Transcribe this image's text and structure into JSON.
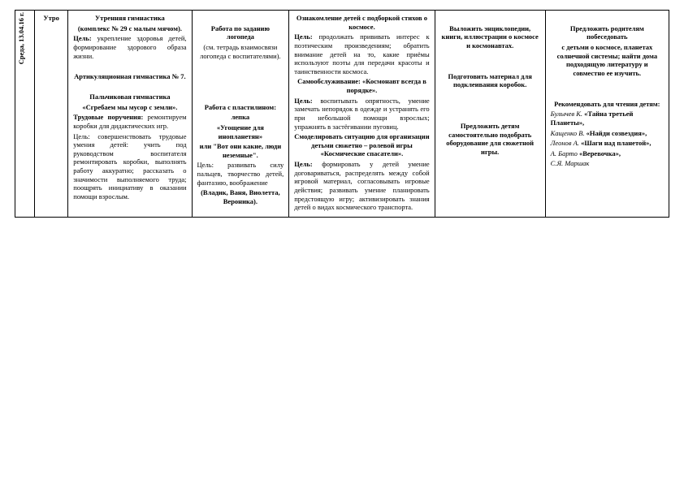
{
  "date": "Среда, 13.04.16 г.",
  "period": "Утро",
  "col2": {
    "p1_title": "Утренняя гимнастика",
    "p1_sub": "(комплекс № 29 с малым мячом).",
    "p1_goal_lbl": "Цель:",
    "p1_goal": " укрепление здоровья детей, формирование здорового образа жизни.",
    "p2_title": "Артикуляционная гимнастика № 7.",
    "p3_title": "Пальчиковая гимнастика",
    "p3_name": "«Сгребаем мы мусор с земли».",
    "p4_title": "Трудовые поручения:",
    "p4_text": " ремонтируем коробки для дидактических игр.",
    "p4_goal": "Цель: совершенствовать трудовые умения детей: учить под руководством воспитателя ремонтировать коробки, выполнять работу аккуратно; рассказать о значимости выполняемого труда; поощрять инициативу в оказании помощи взрослым."
  },
  "col3": {
    "p1_title": "Работа по заданию логопеда",
    "p1_text": "(см. тетрадь взаимосвязи логопеда с воспитателями).",
    "p2_title": "Работа с пластилином:",
    "p2_sub": "лепка",
    "p2_name": "«Угощение для инопланетян»",
    "p2_or": "или \"Вот они какие, люди неземные\".",
    "p2_goal": "Цель: развивать силу пальцев, творчество детей, фантазию, воображение",
    "p2_names": "(Владик, Ваня, Виолетта, Вероника)."
  },
  "col4": {
    "p1_title": "Ознакомление детей с подборкой стихов о космосе.",
    "p1_goal_lbl": "Цель:",
    "p1_goal": " продолжать прививать интерес к поэтическим произведениям; обратить внимание детей на то, какие приёмы используют поэты для передачи красоты и таинственности космоса.",
    "p2_title": "Самообслуживание: «Космонавт всегда в порядке».",
    "p2_goal_lbl": "Цель:",
    "p2_goal": " воспитывать опрятность, умение замечать непорядок в одежде и устранять его при небольшой помощи взрослых; упражнять в застёгивании пуговиц.",
    "p3_title": "Смоделировать ситуацию для организации детьми сюжетно – ролевой игры «Космические спасатели».",
    "p3_goal_lbl": "Цель:",
    "p3_goal": " формировать у детей умение договариваться, распределять между собой игровой материал, согласовывать игровые действия; развивать умение планировать предстоящую игру; активизировать знания детей о видах космического транспорта."
  },
  "col5": {
    "p1": "Выложить энциклопедии, книги, иллюстрации о космосе и космонавтах.",
    "p2": "Подготовить материал для подклеивания коробок.",
    "p3": "Предложить детям самостоятельно подобрать оборудование для сюжетной игры."
  },
  "col6": {
    "p1_title": "Предложить родителям побеседовать",
    "p1_text": "с детьми о космосе, планетах солнечной системы; найти дома подходящую литературу и совместно ее изучить.",
    "p2_title": "Рекомендовать для чтения детям:",
    "a1": "Булычев К.",
    "t1": "«Тайна третьей Планеты»,",
    "a2": "Кащенко В.",
    "t2": "«Найди созвездия»,",
    "a3": "Леонов А.",
    "t3": "«Шаги над планетой»,",
    "a4": "А. Барто",
    "t4": "«Веревочка»,",
    "a5": "С.Я. Маршак"
  }
}
